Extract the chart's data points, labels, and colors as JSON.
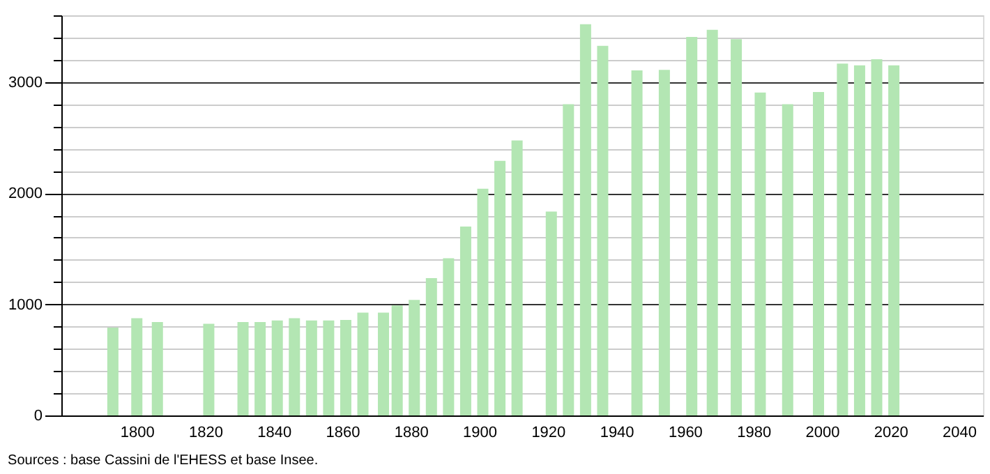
{
  "chart_data": {
    "type": "bar",
    "color": "#b3e6b3",
    "x": [
      1793,
      1800,
      1806,
      1821,
      1831,
      1836,
      1841,
      1846,
      1851,
      1856,
      1861,
      1866,
      1872,
      1876,
      1881,
      1886,
      1891,
      1896,
      1901,
      1906,
      1911,
      1921,
      1926,
      1931,
      1936,
      1946,
      1954,
      1962,
      1968,
      1975,
      1982,
      1990,
      1999,
      2006,
      2011,
      2016,
      2021
    ],
    "values": [
      790,
      875,
      840,
      825,
      840,
      840,
      855,
      875,
      855,
      855,
      860,
      925,
      925,
      990,
      1040,
      1235,
      1415,
      1700,
      2040,
      2290,
      2475,
      1835,
      2800,
      3520,
      3325,
      3105,
      3110,
      3405,
      3470,
      3385,
      2905,
      2800,
      2910,
      3165,
      3150,
      3205,
      3150
    ],
    "xlim": [
      1780,
      2045
    ],
    "xticks": [
      1800,
      1820,
      1840,
      1860,
      1880,
      1900,
      1920,
      1940,
      1960,
      1980,
      2000,
      2020,
      2040
    ],
    "ylim": [
      0,
      3600
    ],
    "yticks": [
      0,
      {
        "value": 200,
        "label": null
      },
      {
        "value": 400,
        "label": null
      },
      {
        "value": 600,
        "label": null
      },
      {
        "value": 800,
        "label": null
      },
      1000,
      {
        "value": 1200,
        "label": null
      },
      {
        "value": 1400,
        "label": null
      },
      {
        "value": 1600,
        "label": null
      },
      {
        "value": 1800,
        "label": null
      },
      2000,
      {
        "value": 2200,
        "label": null
      },
      {
        "value": 2400,
        "label": null
      },
      {
        "value": 2600,
        "label": null
      },
      {
        "value": 2800,
        "label": null
      },
      3000,
      {
        "value": 3200,
        "label": null
      },
      {
        "value": 3400,
        "label": null
      },
      {
        "value": 3600,
        "label": null
      }
    ],
    "grid": "y",
    "annotations": [
      "Sources : base Cassini de l'EHESS et base Insee."
    ]
  }
}
